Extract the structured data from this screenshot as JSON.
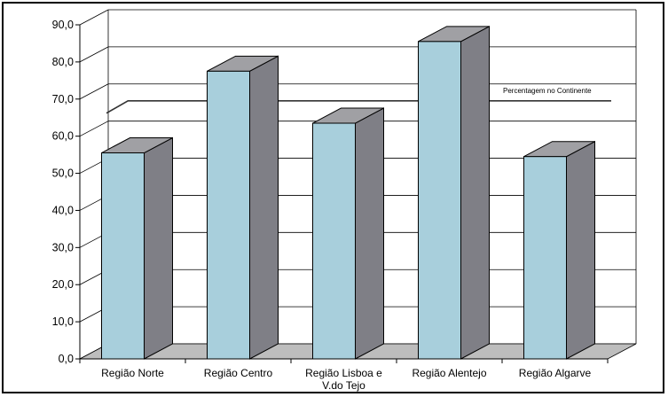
{
  "chart_data": {
    "type": "bar",
    "title": "",
    "xlabel": "",
    "ylabel": "",
    "ylim": [
      0,
      90
    ],
    "yticks": [
      "0,0",
      "10,0",
      "20,0",
      "30,0",
      "40,0",
      "50,0",
      "60,0",
      "70,0",
      "80,0",
      "90,0"
    ],
    "categories": [
      [
        "Região Norte"
      ],
      [
        "Região Centro"
      ],
      [
        "Região Lisboa e",
        "V.do Tejo"
      ],
      [
        "Região Alentejo"
      ],
      [
        "Região Algarve"
      ]
    ],
    "values": [
      55.5,
      77.5,
      63.5,
      85.5,
      54.5
    ],
    "reference_line": {
      "label": "Percentagem no Continente",
      "value": 69.3
    },
    "grid": true,
    "colors": {
      "bar_front": "#a8cfdc",
      "bar_side": "#7f7f86",
      "bar_top": "#a0a0a4",
      "floor": "#bdbdbd",
      "grid": "#000000"
    }
  }
}
